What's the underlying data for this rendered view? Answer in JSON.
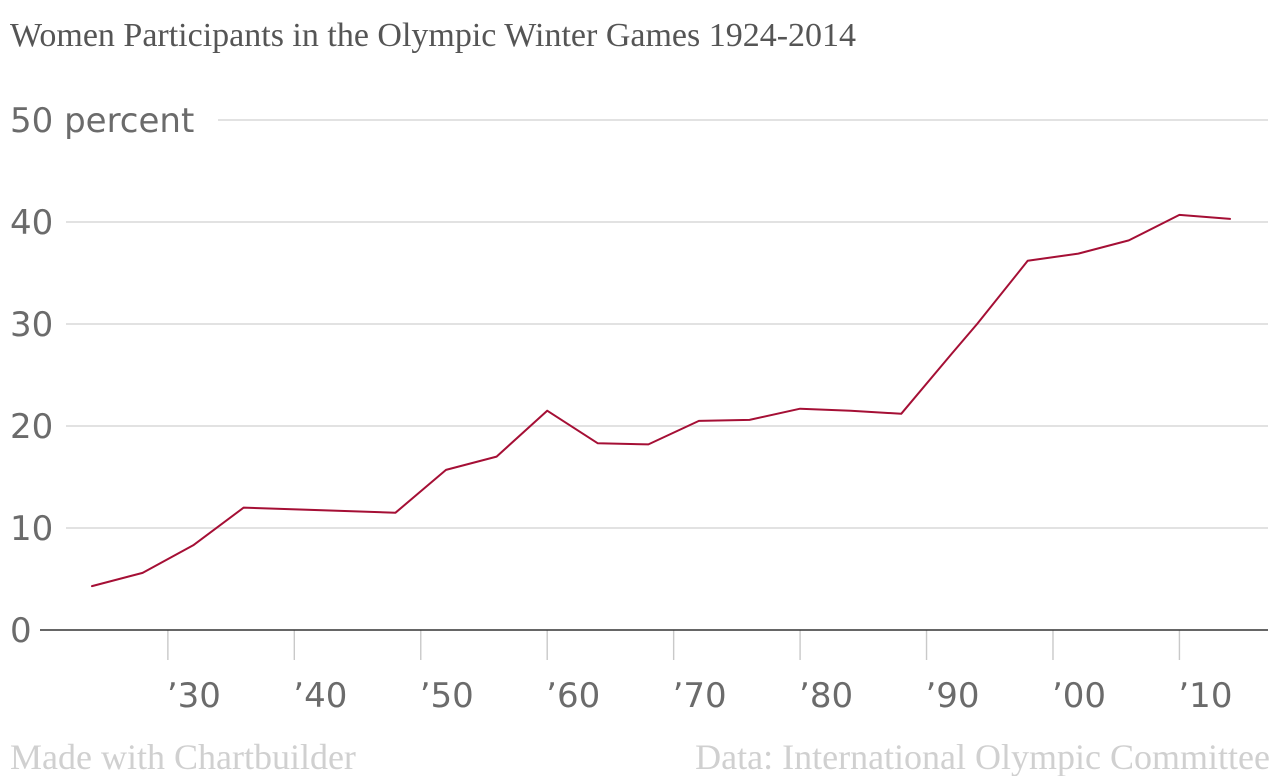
{
  "chart_data": {
    "type": "line",
    "title": "Women Participants in the Olympic Winter Games 1924-2014",
    "y_unit_label": "percent",
    "ylim": [
      0,
      50
    ],
    "y_ticks": [
      0,
      10,
      20,
      30,
      40,
      50
    ],
    "xlim": [
      1924,
      2014
    ],
    "x_ticks": [
      1930,
      1940,
      1950,
      1960,
      1970,
      1980,
      1990,
      2000,
      2010
    ],
    "x_tick_labels": [
      "’30",
      "’40",
      "’50",
      "’60",
      "’70",
      "’80",
      "’90",
      "’00",
      "’10"
    ],
    "grid": true,
    "series": [
      {
        "color": "#a50f35",
        "x": [
          1924,
          1928,
          1932,
          1936,
          1948,
          1952,
          1956,
          1960,
          1964,
          1968,
          1972,
          1976,
          1980,
          1984,
          1988,
          1992,
          1994,
          1998,
          2002,
          2006,
          2010,
          2014
        ],
        "values": [
          4.3,
          5.6,
          8.3,
          12.0,
          11.5,
          15.7,
          17.0,
          21.5,
          18.3,
          18.2,
          20.5,
          20.6,
          21.7,
          21.5,
          21.2,
          27.1,
          30.0,
          36.2,
          36.9,
          38.2,
          40.7,
          40.3
        ]
      }
    ]
  },
  "footer": {
    "left": "Made with Chartbuilder",
    "right": "Data: International Olympic Committee"
  }
}
